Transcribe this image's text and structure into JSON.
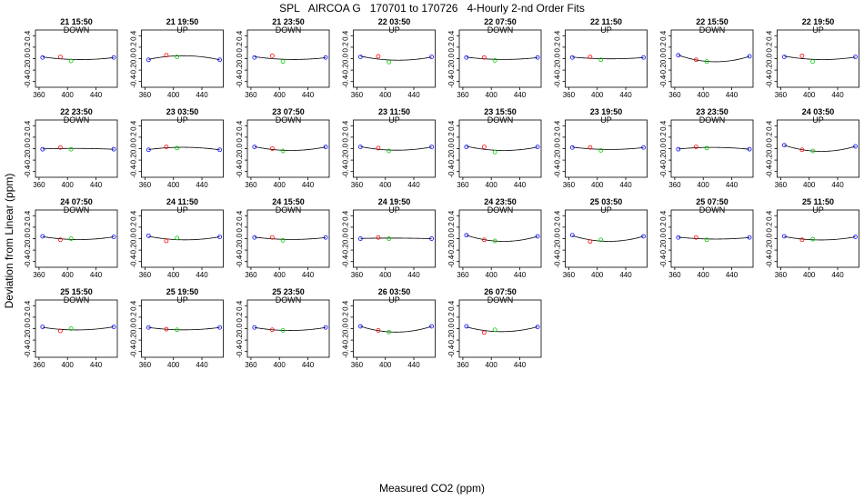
{
  "title": "SPL   AIRCOA G   170701 to 170726   4-Hourly 2-nd Order Fits",
  "chart_data": {
    "type": "scatter",
    "title": "SPL   AIRCOA G   170701 to 170726   4-Hourly 2-nd Order Fits",
    "xlabel": "Measured CO2 (ppm)",
    "ylabel": "Deviation from Linear (ppm)",
    "xlim": [
      355,
      470
    ],
    "ylim": [
      -0.5,
      0.5
    ],
    "xticks": [
      360,
      400,
      440
    ],
    "yticks": [
      -0.4,
      -0.2,
      0.0,
      0.2,
      0.4
    ],
    "point_x": [
      365,
      390,
      405,
      465
    ],
    "point_colors": [
      "#0000ff",
      "#ff0000",
      "#00cc00",
      "#0000ff"
    ],
    "panels": [
      {
        "time": "21 15:50",
        "dir": "DOWN",
        "y": [
          0.02,
          0.03,
          -0.04,
          0.02
        ]
      },
      {
        "time": "21 19:50",
        "dir": "UP",
        "y": [
          -0.02,
          0.06,
          0.03,
          -0.02
        ]
      },
      {
        "time": "21 23:50",
        "dir": "DOWN",
        "y": [
          0.02,
          0.05,
          -0.05,
          0.02
        ]
      },
      {
        "time": "22 03:50",
        "dir": "UP",
        "y": [
          0.03,
          0.04,
          -0.06,
          0.03
        ]
      },
      {
        "time": "22 07:50",
        "dir": "DOWN",
        "y": [
          0.02,
          0.02,
          -0.03,
          0.02
        ]
      },
      {
        "time": "22 11:50",
        "dir": "UP",
        "y": [
          0.02,
          0.03,
          -0.02,
          0.02
        ]
      },
      {
        "time": "22 15:50",
        "dir": "DOWN",
        "y": [
          0.06,
          -0.02,
          -0.05,
          0.04
        ]
      },
      {
        "time": "22 19:50",
        "dir": "UP",
        "y": [
          0.03,
          0.05,
          -0.05,
          0.03
        ]
      },
      {
        "time": "22 23:50",
        "dir": "DOWN",
        "y": [
          -0.01,
          0.02,
          -0.01,
          -0.01
        ]
      },
      {
        "time": "23 03:50",
        "dir": "UP",
        "y": [
          -0.02,
          0.03,
          0.01,
          -0.02
        ]
      },
      {
        "time": "23 07:50",
        "dir": "DOWN",
        "y": [
          0.03,
          0.0,
          -0.04,
          0.03
        ]
      },
      {
        "time": "23 11:50",
        "dir": "UP",
        "y": [
          0.03,
          0.01,
          -0.04,
          0.03
        ]
      },
      {
        "time": "23 15:50",
        "dir": "DOWN",
        "y": [
          0.03,
          0.03,
          -0.06,
          0.03
        ]
      },
      {
        "time": "23 19:50",
        "dir": "UP",
        "y": [
          0.02,
          0.02,
          -0.03,
          0.02
        ]
      },
      {
        "time": "23 23:50",
        "dir": "DOWN",
        "y": [
          -0.01,
          0.03,
          0.01,
          -0.01
        ]
      },
      {
        "time": "24 03:50",
        "dir": "UP",
        "y": [
          0.06,
          -0.02,
          -0.04,
          0.04
        ]
      },
      {
        "time": "24 07:50",
        "dir": "DOWN",
        "y": [
          0.04,
          -0.02,
          0.0,
          0.03
        ]
      },
      {
        "time": "24 11:50",
        "dir": "UP",
        "y": [
          0.05,
          -0.04,
          0.01,
          0.03
        ]
      },
      {
        "time": "24 15:50",
        "dir": "DOWN",
        "y": [
          0.02,
          0.02,
          -0.03,
          0.02
        ]
      },
      {
        "time": "24 19:50",
        "dir": "UP",
        "y": [
          0.0,
          0.02,
          0.0,
          0.0
        ]
      },
      {
        "time": "24 23:50",
        "dir": "DOWN",
        "y": [
          0.06,
          -0.02,
          -0.04,
          0.04
        ]
      },
      {
        "time": "25 03:50",
        "dir": "UP",
        "y": [
          0.06,
          -0.05,
          -0.02,
          0.04
        ]
      },
      {
        "time": "25 07:50",
        "dir": "DOWN",
        "y": [
          0.02,
          0.02,
          -0.02,
          0.02
        ]
      },
      {
        "time": "25 11:50",
        "dir": "UP",
        "y": [
          0.04,
          -0.02,
          -0.01,
          0.03
        ]
      },
      {
        "time": "25 15:50",
        "dir": "DOWN",
        "y": [
          0.03,
          -0.04,
          0.0,
          0.03
        ]
      },
      {
        "time": "25 19:50",
        "dir": "UP",
        "y": [
          0.02,
          -0.01,
          -0.02,
          0.02
        ]
      },
      {
        "time": "25 23:50",
        "dir": "DOWN",
        "y": [
          0.02,
          -0.02,
          -0.03,
          0.02
        ]
      },
      {
        "time": "26 03:50",
        "dir": "UP",
        "y": [
          0.04,
          -0.03,
          -0.06,
          0.04
        ]
      },
      {
        "time": "26 07:50",
        "dir": "DOWN",
        "y": [
          0.04,
          -0.07,
          -0.02,
          0.03
        ]
      }
    ]
  }
}
